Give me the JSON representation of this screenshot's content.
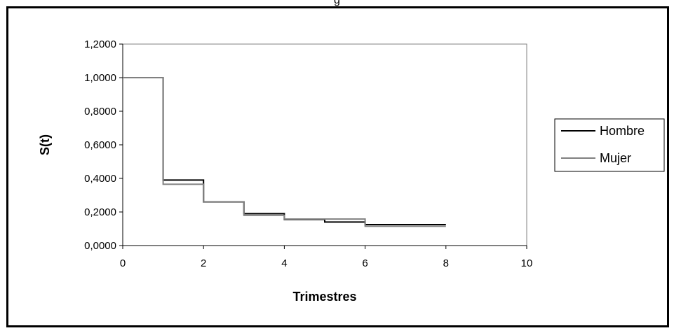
{
  "chart_data": {
    "type": "line",
    "title": "g",
    "xlabel": "Trimestres",
    "ylabel": "S(t)",
    "xlim": [
      0,
      10
    ],
    "ylim": [
      0,
      1.2
    ],
    "x_ticks": [
      "0",
      "2",
      "4",
      "6",
      "8",
      "10"
    ],
    "y_ticks": [
      "0,0000",
      "0,2000",
      "0,4000",
      "0,6000",
      "0,8000",
      "1,0000",
      "1,2000"
    ],
    "grid": false,
    "legend_position": "right",
    "step": "post",
    "series": [
      {
        "name": "Hombre",
        "color": "#000000",
        "x": [
          0,
          1,
          2,
          3,
          4,
          5,
          6,
          8
        ],
        "y": [
          1.0,
          0.39,
          0.26,
          0.19,
          0.155,
          0.14,
          0.125,
          0.125
        ]
      },
      {
        "name": "Mujer",
        "color": "#808080",
        "x": [
          0,
          1,
          2,
          3,
          4,
          5,
          6,
          8
        ],
        "y": [
          1.0,
          0.365,
          0.26,
          0.18,
          0.158,
          0.158,
          0.115,
          0.115
        ]
      }
    ]
  }
}
